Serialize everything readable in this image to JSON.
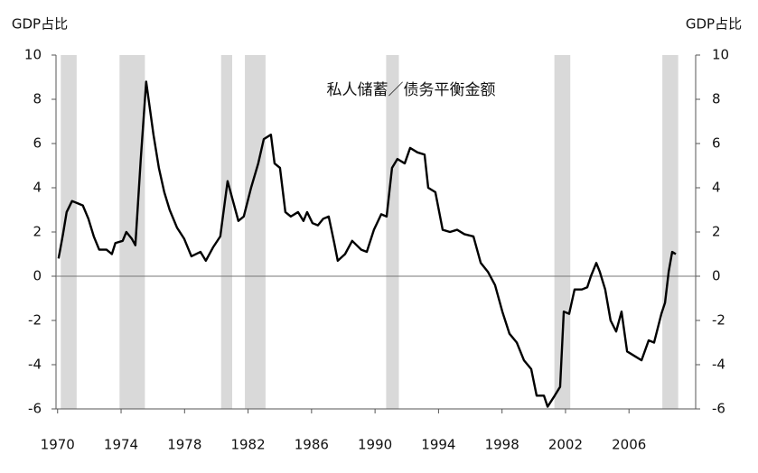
{
  "chart_data": {
    "type": "line",
    "title": "私人储蓄／债务平衡金额",
    "y_label": "GDP占比",
    "y2_label": "GDP占比",
    "x": [
      1970.06,
      1970.34,
      1970.57,
      1970.91,
      1971.25,
      1971.59,
      1971.94,
      1972.28,
      1972.62,
      1973.08,
      1973.42,
      1973.64,
      1974.1,
      1974.33,
      1974.67,
      1974.9,
      1975.24,
      1975.58,
      1975.81,
      1976.04,
      1976.38,
      1976.72,
      1977.06,
      1977.52,
      1977.97,
      1978.43,
      1979.0,
      1979.34,
      1979.79,
      1980.25,
      1980.71,
      1981.05,
      1981.39,
      1981.73,
      1982.19,
      1982.64,
      1982.99,
      1983.44,
      1983.67,
      1984.01,
      1984.35,
      1984.69,
      1985.15,
      1985.49,
      1985.72,
      1986.06,
      1986.4,
      1986.74,
      1987.08,
      1987.43,
      1987.65,
      1988.11,
      1988.56,
      1989.13,
      1989.48,
      1989.93,
      1990.39,
      1990.73,
      1991.07,
      1991.41,
      1991.87,
      1992.21,
      1992.67,
      1993.12,
      1993.35,
      1993.8,
      1994.26,
      1994.72,
      1995.17,
      1995.63,
      1996.2,
      1996.66,
      1997.11,
      1997.56,
      1998.02,
      1998.47,
      1998.93,
      1999.38,
      1999.84,
      2000.18,
      2000.64,
      2000.87,
      2001.32,
      2001.66,
      2001.89,
      2002.23,
      2002.57,
      2003.03,
      2003.37,
      2003.6,
      2003.94,
      2004.16,
      2004.5,
      2004.84,
      2005.19,
      2005.53,
      2005.88,
      2006.33,
      2006.79,
      2007.24,
      2007.58,
      2008.04,
      2008.27,
      2008.5,
      2008.72,
      2008.95
    ],
    "series": [
      {
        "name": "私人储蓄／债务平衡",
        "color": "#000000",
        "values": [
          0.8,
          1.9,
          2.9,
          3.4,
          3.3,
          3.2,
          2.6,
          1.8,
          1.2,
          1.2,
          1.0,
          1.5,
          1.6,
          2.0,
          1.7,
          1.4,
          5.3,
          8.8,
          7.6,
          6.4,
          4.9,
          3.8,
          3.0,
          2.2,
          1.7,
          0.9,
          1.1,
          0.7,
          1.3,
          1.8,
          4.3,
          3.4,
          2.5,
          2.7,
          4.0,
          5.1,
          6.2,
          6.4,
          5.1,
          4.9,
          2.9,
          2.7,
          2.9,
          2.5,
          2.9,
          2.4,
          2.3,
          2.6,
          2.7,
          1.5,
          0.7,
          1.0,
          1.6,
          1.2,
          1.1,
          2.1,
          2.8,
          2.7,
          4.9,
          5.3,
          5.1,
          5.8,
          5.6,
          5.5,
          4.0,
          3.8,
          2.1,
          2.0,
          2.1,
          1.9,
          1.8,
          0.6,
          0.2,
          -0.4,
          -1.6,
          -2.6,
          -3.0,
          -3.8,
          -4.2,
          -5.4,
          -5.4,
          -5.9,
          -5.4,
          -5.0,
          -1.6,
          -1.7,
          -0.6,
          -0.6,
          -0.5,
          0.0,
          0.6,
          0.2,
          -0.6,
          -2.0,
          -2.5,
          -1.6,
          -3.4,
          -3.6,
          -3.8,
          -2.9,
          -3.0,
          -1.7,
          -1.2,
          0.2,
          1.1,
          1.0
        ]
      }
    ],
    "shaded_regions": [
      [
        1970.2,
        1971.2
      ],
      [
        1973.9,
        1975.5
      ],
      [
        1980.3,
        1981.0
      ],
      [
        1981.8,
        1983.1
      ],
      [
        1990.7,
        1991.5
      ],
      [
        2001.3,
        2002.3
      ],
      [
        2008.1,
        2009.1
      ]
    ],
    "shade_color": "#d9d9d9",
    "xlim": [
      1969.9,
      2010.2
    ],
    "xticks": [
      1970,
      1974,
      1978,
      1982,
      1986,
      1990,
      1994,
      1998,
      2002,
      2006
    ],
    "ylim": [
      -6,
      10
    ],
    "yticks": [
      -6,
      -4,
      -2,
      0,
      2,
      4,
      6,
      8,
      10
    ],
    "y2lim": [
      -6,
      10
    ],
    "y2ticks": [
      -6,
      -4,
      -2,
      0,
      2,
      4,
      6,
      8,
      10
    ],
    "grid": false
  }
}
